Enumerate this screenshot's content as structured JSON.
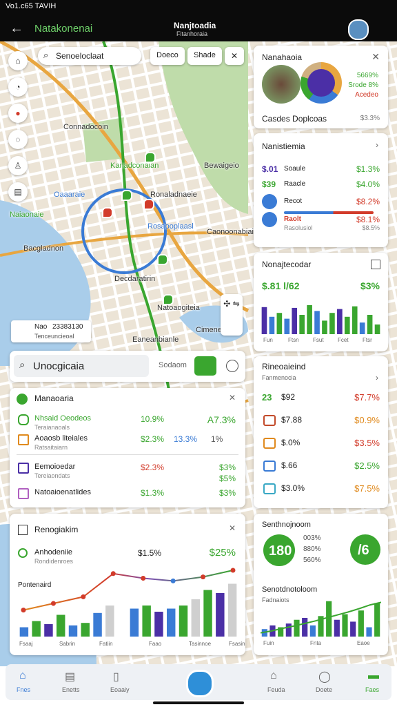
{
  "status": {
    "left": "Vo1.c65 TAVIH"
  },
  "appbar": {
    "title": "Natakonenai",
    "center": "Nanjtoadia",
    "subtitle": "Fitanhoraia"
  },
  "map": {
    "search": "Senoeloclaat",
    "buttons": [
      "Doeco",
      "Shade"
    ],
    "labels": [
      "Connadocoin",
      "Kanadconaian",
      "Bewaigeio",
      "Ronaladnaeie",
      "Oaaaraie",
      "Naiaonaie",
      "Caonoonabiai",
      "Bacgladnon",
      "Rosaooplaasl",
      "Decdaratirin",
      "Natoaogiteia",
      "Eaneanbianle",
      "Cimeneaie"
    ],
    "legend": {
      "title": "Nao",
      "value": "23383130",
      "sub": "Tenceuncieoal"
    }
  },
  "card_profile": {
    "title": "Nanahaoia",
    "legend": [
      "5669%",
      "Srode 8%",
      "Acedeo"
    ],
    "caption": "Casdes Doplcoas",
    "value": "$3.3%"
  },
  "card_list": {
    "title": "Nanistiemia",
    "rows": [
      {
        "a": "$.01",
        "b": "Soaule",
        "c": "$1.3%"
      },
      {
        "a": "$39",
        "b": "Raacle",
        "c": "$4.0%"
      },
      {
        "b": "Recot",
        "c": "$8.2%"
      },
      {
        "b": "Raolt",
        "sub": "Rasolusiol",
        "c": "$8.1%",
        "csub": "$8.5%"
      }
    ]
  },
  "card_bars": {
    "title": "Nonajtecodar",
    "value": "$.81 l/62",
    "badge": "$3%",
    "ylim": [
      0,
      100
    ],
    "values": [
      70,
      45,
      55,
      40,
      68,
      50,
      75,
      60,
      35,
      55,
      65,
      45,
      72,
      30,
      50,
      25
    ],
    "colors": [
      "#4b2fa6",
      "#3a7bd5",
      "#3aa62f",
      "#3a7bd5",
      "#4b2fa6",
      "#3aa62f",
      "#3aa62f",
      "#3a7bd5",
      "#3aa62f",
      "#3aa62f",
      "#4b2fa6",
      "#3aa62f",
      "#3aa62f",
      "#3a7bd5",
      "#3aa62f",
      "#3aa62f"
    ],
    "xlabels": [
      "Fun",
      "Ftsn",
      "Fsut",
      "Fcet",
      "Ftsr"
    ]
  },
  "card_rec": {
    "title": "Rineoaieind",
    "subtitle": "Fanmenocia",
    "rows": [
      {
        "a": "23",
        "b": "$92",
        "c": "$7.7%"
      },
      {
        "b": "$7.88",
        "c": "$0.9%"
      },
      {
        "b": "$.0%",
        "c": "$3.5%"
      },
      {
        "b": "$.66",
        "c": "$2.5%"
      },
      {
        "b": "$3.0%",
        "c": "$7.5%"
      }
    ]
  },
  "card_sum": {
    "title": "Senthnojnoom",
    "badge1": "180",
    "lines": [
      "003%",
      "880%",
      "560%"
    ],
    "badge2": "/6",
    "chart_title": "Senotdnotoloom",
    "chart_sub": "Fadnaiots",
    "ylim": [
      0,
      100
    ],
    "values": [
      20,
      30,
      25,
      35,
      45,
      50,
      30,
      55,
      95,
      45,
      60,
      40,
      70,
      25,
      90
    ],
    "colors": [
      "#3a7bd5",
      "#4b2fa6",
      "#3aa62f",
      "#4b2fa6",
      "#3aa62f",
      "#4b2fa6",
      "#3a7bd5",
      "#3aa62f",
      "#3aa62f",
      "#4b2fa6",
      "#3aa62f",
      "#4b2fa6",
      "#3aa62f",
      "#3a7bd5",
      "#3aa62f"
    ],
    "line": [
      10,
      15,
      22,
      28,
      35,
      42,
      50,
      58,
      66,
      75,
      85,
      92
    ],
    "xlabels": [
      "Fuin",
      "Fnta",
      "Eaoe"
    ]
  },
  "search": {
    "placeholder": "Unocgicaia",
    "button": "Sodaom"
  },
  "card_man": {
    "title": "Manaoaria",
    "rows": [
      {
        "label": "Nhsaid Oeodeos",
        "sub": "Teraianaoals",
        "v1": "10.9%",
        "v2": "A7.3%"
      },
      {
        "label": "Aoaosb liteiales",
        "sub": "Ratsaitaiarn",
        "v1": "$2.3%",
        "v2": "13.3%",
        "v3": "1%"
      },
      {
        "label": "Eemoioedar",
        "sub": "Tereiaondats",
        "v1": "$2.3%",
        "v2": "$3%",
        "v3": "$5%"
      },
      {
        "label": "Natoaioenatlides",
        "v1": "$1.3%",
        "v2": "$3%"
      }
    ]
  },
  "card_chart": {
    "title": "Renogiakim",
    "row": {
      "label": "Anhodeniie",
      "sub": "Rondidenroes",
      "v1": "$1.5%",
      "v2": "$25%"
    },
    "chart_label": "Pontenaird",
    "ylim": [
      0,
      100
    ],
    "bars": [
      15,
      25,
      20,
      35,
      18,
      22,
      38,
      50,
      45,
      50,
      40,
      45,
      50,
      60,
      75,
      70,
      85
    ],
    "colors": [
      "#3a7bd5",
      "#3aa62f",
      "#4b2fa6",
      "#3aa62f",
      "#3a7bd5",
      "#3aa62f",
      "#3a7bd5",
      "#cfcfcf",
      "#3a7bd5",
      "#3aa62f",
      "#4b2fa6",
      "#3a7bd5",
      "#3aa62f",
      "#cfcfcf",
      "#3aa62f",
      "#4b2fa6",
      "#cfcfcf"
    ],
    "line": [
      40,
      50,
      60,
      95,
      88,
      84,
      90,
      100
    ],
    "xlabels": [
      "Fsaaj",
      "Sabrin",
      "Fatiin",
      "Faao",
      "Tasinnoe",
      "Fsasin"
    ]
  },
  "nav": [
    "Fnes",
    "Enetts",
    "Eoaaiy",
    "Feuda",
    "Doete",
    "Faes"
  ]
}
